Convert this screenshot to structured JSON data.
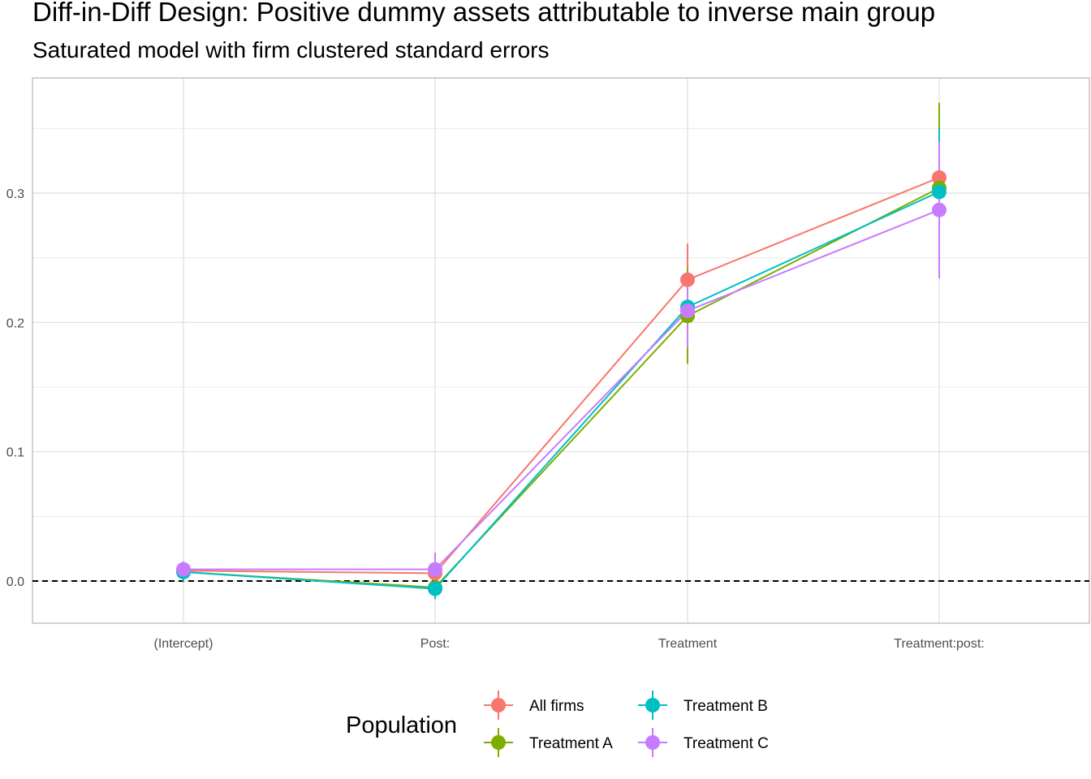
{
  "chart_data": {
    "type": "line",
    "title": "Diff-in-Diff Design: Positive dummy assets attributable to inverse main group",
    "subtitle": "Saturated model with firm clustered standard errors",
    "xlabel": "",
    "ylabel": "",
    "categories": [
      "(Intercept)",
      "Post:",
      "Treatment",
      "Treatment:post:"
    ],
    "y_ticks": [
      "0.0",
      "0.1",
      "0.2",
      "0.3"
    ],
    "ylim": [
      -0.033,
      0.388
    ],
    "reference_line": {
      "y": 0,
      "style": "dashed"
    },
    "grid": true,
    "legend_title": "Population",
    "legend_position": "bottom",
    "series": [
      {
        "name": "All firms",
        "color": "#F8766D",
        "values": [
          0.008,
          0.006,
          0.233,
          0.312
        ],
        "lower": [
          0.004,
          0.0,
          0.205,
          0.29
        ],
        "upper": [
          0.012,
          0.012,
          0.261,
          0.334
        ]
      },
      {
        "name": "Treatment A",
        "color": "#7CAE00",
        "values": [
          0.007,
          -0.005,
          0.205,
          0.304
        ],
        "lower": [
          0.0,
          -0.013,
          0.168,
          0.238
        ],
        "upper": [
          0.014,
          0.003,
          0.242,
          0.37
        ]
      },
      {
        "name": "Treatment B",
        "color": "#00BFC4",
        "values": [
          0.007,
          -0.006,
          0.212,
          0.301
        ],
        "lower": [
          -0.001,
          -0.014,
          0.185,
          0.252
        ],
        "upper": [
          0.015,
          0.002,
          0.239,
          0.35
        ]
      },
      {
        "name": "Treatment C",
        "color": "#C77CFF",
        "values": [
          0.009,
          0.009,
          0.209,
          0.287
        ],
        "lower": [
          0.004,
          -0.004,
          0.18,
          0.234
        ],
        "upper": [
          0.014,
          0.022,
          0.238,
          0.34
        ]
      }
    ]
  }
}
